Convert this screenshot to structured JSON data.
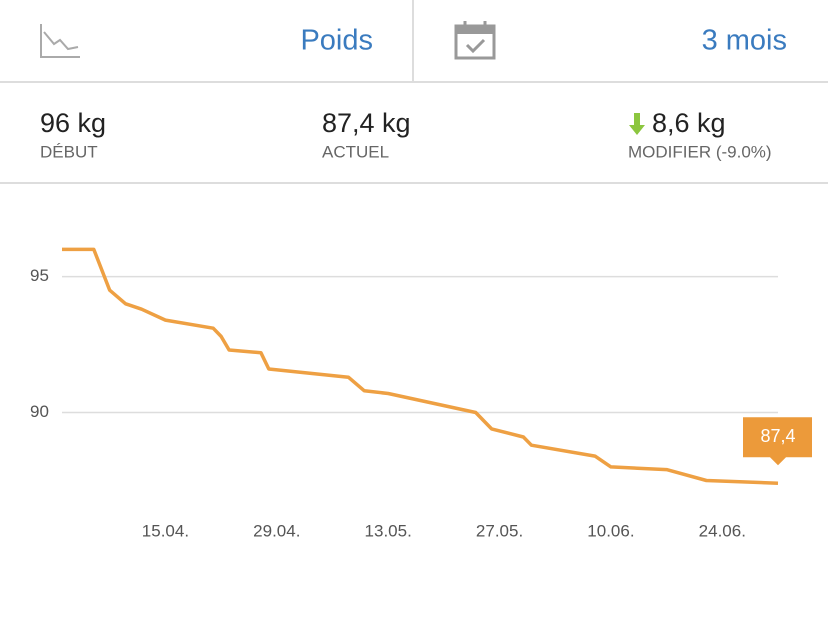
{
  "header": {
    "metric": "Poids",
    "period": "3 mois"
  },
  "stats": [
    {
      "value": "96 kg",
      "label": "DÉBUT"
    },
    {
      "value": "87,4 kg",
      "label": "ACTUEL"
    },
    {
      "value": "8,6 kg",
      "label": "MODIFIER (-9.0%)"
    }
  ],
  "chart_data": {
    "type": "line",
    "x": [
      "02.04.",
      "06.04.",
      "08.04.",
      "10.04.",
      "12.04.",
      "15.04.",
      "21.04.",
      "22.04.",
      "23.04.",
      "27.04.",
      "28.04.",
      "08.05.",
      "10.05.",
      "13.05.",
      "24.05.",
      "26.05.",
      "30.05.",
      "31.05.",
      "08.06.",
      "10.06.",
      "17.06.",
      "22.06.",
      "01.07."
    ],
    "values": [
      96,
      96,
      94.5,
      94.0,
      93.8,
      93.4,
      93.1,
      92.8,
      92.3,
      92.2,
      91.6,
      91.3,
      90.8,
      90.7,
      90.0,
      89.4,
      89.1,
      88.8,
      88.4,
      88.0,
      87.9,
      87.5,
      87.4
    ],
    "value_labels": [
      null,
      null,
      null,
      null,
      null,
      null,
      null,
      null,
      null,
      null,
      null,
      null,
      null,
      null,
      null,
      null,
      null,
      null,
      null,
      null,
      null,
      null,
      "87,4"
    ],
    "color": "#eea043",
    "xlim": [
      "02.04.",
      "01.07."
    ],
    "xticks": [
      "15.04.",
      "29.04.",
      "13.05.",
      "27.05.",
      "10.06.",
      "24.06."
    ],
    "ylim": [
      86.6,
      98
    ],
    "yticks": [
      90,
      95
    ],
    "grid": true
  }
}
